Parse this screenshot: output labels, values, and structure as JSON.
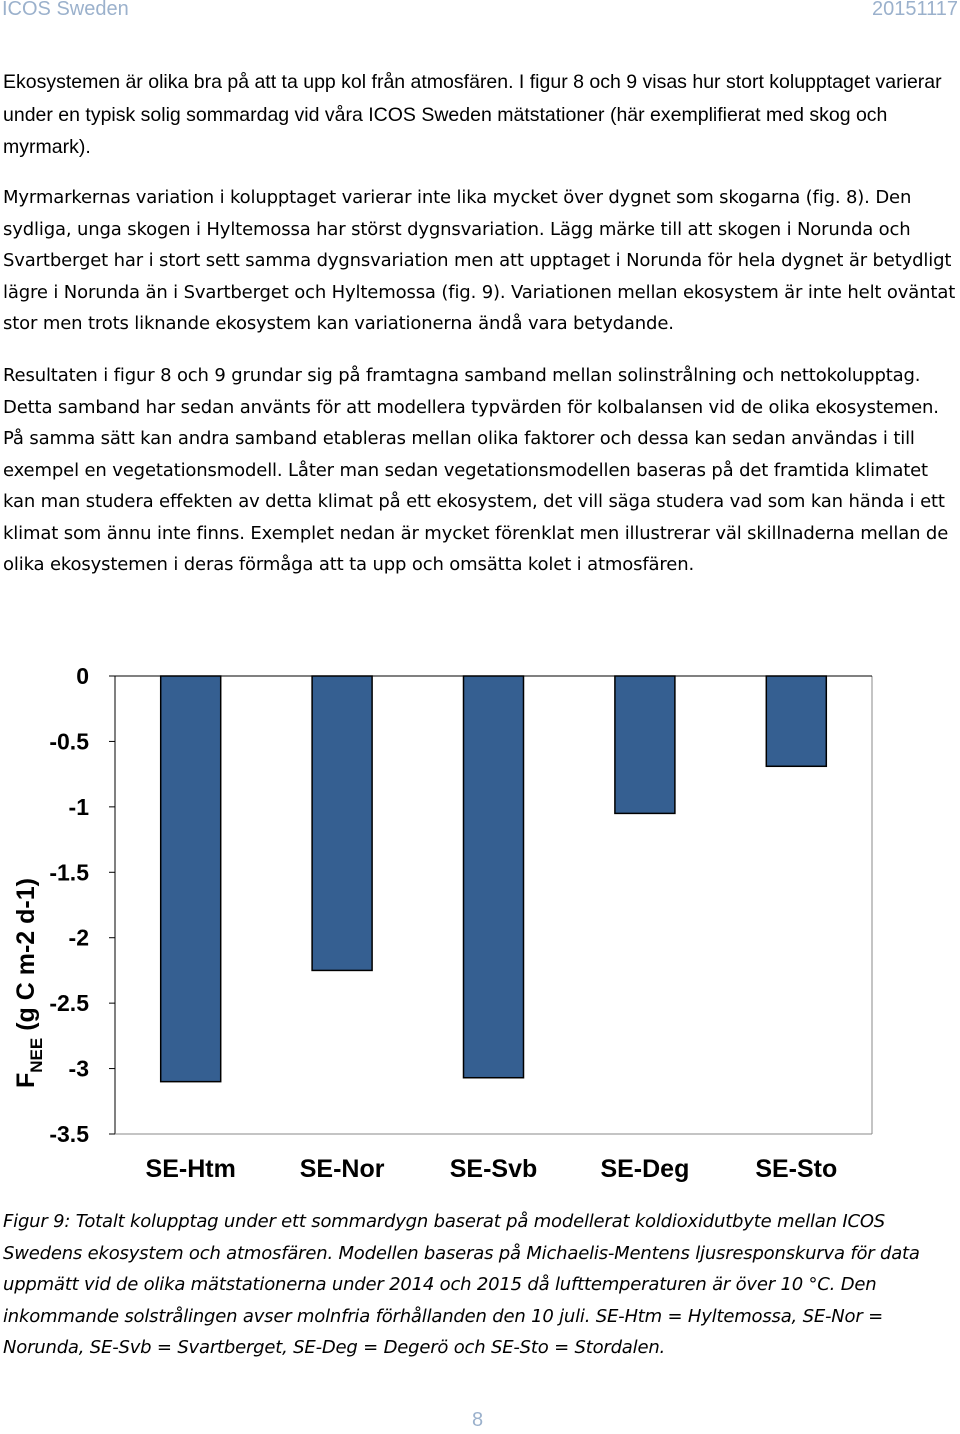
{
  "header": {
    "left": "ICOS Sweden",
    "right": "20151117"
  },
  "body": {
    "p1": "Ekosystemen är olika bra på att ta upp kol från atmosfären. I figur 8 och 9 visas hur stort kolupptaget varierar under en typisk solig sommardag vid våra ICOS Sweden mätstationer (här exemplifierat med skog och myrmark).",
    "p2": "Myrmarkernas variation i kolupptaget varierar inte lika mycket över dygnet som skogarna (fig. 8). Den sydliga, unga skogen i Hyltemossa har störst dygnsvariation. Lägg märke till att skogen i Norunda och Svartberget har i stort sett samma dygnsvariation men att upptaget i Norunda för hela dygnet är betydligt lägre i Norunda än i Svartberget och Hyltemossa (fig. 9). Variationen mellan ekosystem är inte helt oväntat stor men trots liknande ekosystem kan variationerna ändå vara betydande.",
    "p3": "Resultaten i figur 8 och 9 grundar sig på framtagna samband mellan solinstrålning och nettokolupptag. Detta samband har sedan använts för att modellera typvärden för kolbalansen vid de olika ekosystemen. På samma sätt kan andra samband etableras mellan olika faktorer och dessa kan sedan användas i till exempel en vegetationsmodell. Låter man sedan vegetationsmodellen baseras på det framtida klimatet kan man studera effekten av detta klimat på ett ekosystem, det vill säga studera vad som kan hända i ett klimat som ännu inte finns. Exemplet nedan är mycket förenklat men illustrerar väl skillnaderna mellan de olika ekosystemen i deras förmåga att ta upp och omsätta kolet i atmosfären."
  },
  "chart_data": {
    "type": "bar",
    "categories": [
      "SE-Htm",
      "SE-Nor",
      "SE-Svb",
      "SE-Deg",
      "SE-Sto"
    ],
    "values": [
      -3.1,
      -2.25,
      -3.07,
      -1.05,
      -0.69
    ],
    "ylabel_main": "F",
    "ylabel_sub": "NEE",
    "ylabel_rest": "(g C m-2 d-1)",
    "ylim": [
      -3.5,
      0
    ],
    "yticks": [
      "0",
      "-0.5",
      "-1",
      "-1.5",
      "-2",
      "-2.5",
      "-3",
      "-3.5"
    ],
    "bar_color": "#355f91",
    "grid": false
  },
  "caption": "Figur 9: Totalt kolupptag under ett sommardygn baserat på modellerat koldioxidutbyte mellan ICOS Swedens ekosystem och atmosfären. Modellen baseras på Michaelis-Mentens ljusresponskurva för data uppmätt vid de olika mätstationerna under 2014 och 2015 då lufttemperaturen är över 10 °C. Den inkommande solstrålingen avser molnfria förhållanden den 10 juli. SE-Htm = Hyltemossa, SE-Nor = Norunda, SE-Svb = Svartberget, SE-Deg = Degerö och SE-Sto = Stordalen.",
  "footer": {
    "page_number": "8"
  }
}
